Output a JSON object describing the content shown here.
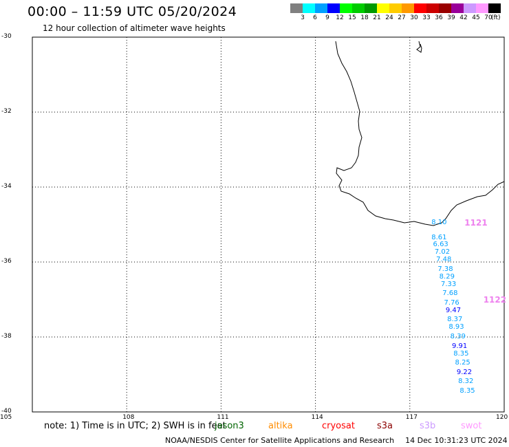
{
  "header": {
    "title": "00:00 – 11:59 UTC 05/20/2024",
    "subtitle": "12 hour collection of altimeter wave heights"
  },
  "color_scale": {
    "colors": [
      "#808080",
      "#00ffff",
      "#00a0ff",
      "#0000ff",
      "#00ff00",
      "#00cc00",
      "#009900",
      "#ffff00",
      "#ffcc00",
      "#ff9900",
      "#ff0000",
      "#cc0000",
      "#990000",
      "#990099",
      "#cc99ff",
      "#ff99ff",
      "#000000"
    ],
    "labels": [
      "3",
      "6",
      "9",
      "12",
      "15",
      "18",
      "21",
      "24",
      "27",
      "30",
      "33",
      "36",
      "39",
      "42",
      "45",
      "70"
    ],
    "unit": "(ft)"
  },
  "map": {
    "lat_labels": [
      "-30",
      "-32",
      "-34",
      "-36",
      "-38",
      "-40"
    ],
    "lon_labels": [
      "105",
      "108",
      "111",
      "114",
      "117",
      "120"
    ],
    "lat_range": [
      -40,
      -30
    ],
    "lon_range": [
      105,
      120
    ],
    "grid": "dotted"
  },
  "observations": [
    {
      "value": "8.10",
      "lon": 117.95,
      "lat": -34.95,
      "color": "#00a0ff"
    },
    {
      "value": "8.61",
      "lon": 117.95,
      "lat": -35.35,
      "color": "#00a0ff"
    },
    {
      "value": "6.63",
      "lon": 118.0,
      "lat": -35.55,
      "color": "#00a0ff"
    },
    {
      "value": "7.02",
      "lon": 118.05,
      "lat": -35.75,
      "color": "#00a0ff"
    },
    {
      "value": "7.48",
      "lon": 118.1,
      "lat": -35.95,
      "color": "#00a0ff"
    },
    {
      "value": "7.38",
      "lon": 118.15,
      "lat": -36.2,
      "color": "#00a0ff"
    },
    {
      "value": "8.29",
      "lon": 118.2,
      "lat": -36.4,
      "color": "#00a0ff"
    },
    {
      "value": "7.33",
      "lon": 118.25,
      "lat": -36.6,
      "color": "#00a0ff"
    },
    {
      "value": "7.68",
      "lon": 118.3,
      "lat": -36.85,
      "color": "#00a0ff"
    },
    {
      "value": "7.76",
      "lon": 118.35,
      "lat": -37.1,
      "color": "#00a0ff"
    },
    {
      "value": "9.47",
      "lon": 118.4,
      "lat": -37.3,
      "color": "#0000ff"
    },
    {
      "value": "8.37",
      "lon": 118.45,
      "lat": -37.55,
      "color": "#00a0ff"
    },
    {
      "value": "8.93",
      "lon": 118.5,
      "lat": -37.75,
      "color": "#00a0ff"
    },
    {
      "value": "8.39",
      "lon": 118.55,
      "lat": -38.0,
      "color": "#00a0ff"
    },
    {
      "value": "9.91",
      "lon": 118.6,
      "lat": -38.25,
      "color": "#0000ff"
    },
    {
      "value": "8.35",
      "lon": 118.65,
      "lat": -38.45,
      "color": "#00a0ff"
    },
    {
      "value": "8.25",
      "lon": 118.7,
      "lat": -38.7,
      "color": "#00a0ff"
    },
    {
      "value": "9.22",
      "lon": 118.75,
      "lat": -38.95,
      "color": "#0000ff"
    },
    {
      "value": "8.32",
      "lon": 118.8,
      "lat": -39.2,
      "color": "#00a0ff"
    },
    {
      "value": "8.35",
      "lon": 118.85,
      "lat": -39.45,
      "color": "#00a0ff"
    }
  ],
  "passes": [
    {
      "label": "1121",
      "lon": 119.0,
      "lat": -34.95
    },
    {
      "label": "1122",
      "lon": 119.6,
      "lat": -37.0
    }
  ],
  "legend": {
    "note": "note: 1) Time is in UTC; 2) SWH is in feet",
    "satellites": [
      {
        "name": "jason3",
        "color": "#006400"
      },
      {
        "name": "altika",
        "color": "#ff8c00"
      },
      {
        "name": "cryosat",
        "color": "#ff0000"
      },
      {
        "name": "s3a",
        "color": "#8b0000"
      },
      {
        "name": "s3b",
        "color": "#cc99ff"
      },
      {
        "name": "swot",
        "color": "#ff99ff"
      }
    ]
  },
  "footer": {
    "credit": "NOAA/NESDIS Center for Satellite Applications and Research",
    "timestamp": "14 Dec 10:31:23 UTC 2024"
  }
}
